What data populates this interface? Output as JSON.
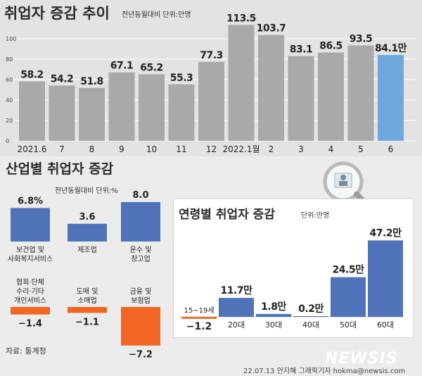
{
  "header": {
    "title": "취업자 증감 추이",
    "note": "전년동월대비 단위:만명"
  },
  "industry_header": {
    "title": "산업별 취업자 증감",
    "note": "전년동월대비 단위:%"
  },
  "age_header": {
    "title": "연령별 취업자 증감",
    "note": "단위:만명"
  },
  "footer": {
    "source": "자료: 통계청",
    "credit": "22.07.13 안지혜 그래픽기자 hokma@newsis.com",
    "logo": "NEWSIS"
  },
  "colors": {
    "gray_bar": "#a9a9a9",
    "highlight_bar": "#6fa8dc",
    "blue_bar": "#4f72b8",
    "orange_bar": "#f26522"
  },
  "icons": [
    "magnifier-icon"
  ],
  "chart_data": [
    {
      "type": "bar",
      "title": "취업자 증감 추이",
      "categories": [
        "2021.6",
        "7",
        "8",
        "9",
        "10",
        "11",
        "12",
        "2022.1월",
        "2",
        "3",
        "4",
        "5",
        "6"
      ],
      "values": [
        58.2,
        54.2,
        51.8,
        67.1,
        65.2,
        55.3,
        77.3,
        113.5,
        103.7,
        83.1,
        86.5,
        93.5,
        84.1
      ],
      "value_labels": [
        "58.2",
        "54.2",
        "51.8",
        "67.1",
        "65.2",
        "55.3",
        "77.3",
        "113.5",
        "103.7",
        "83.1",
        "86.5",
        "93.5",
        "84.1만"
      ],
      "highlight_index": 12,
      "yticks": [
        "0",
        "20",
        "40",
        "60",
        "80",
        "100"
      ],
      "ylim": [
        0,
        120
      ],
      "grid": true
    },
    {
      "type": "bar",
      "title": "산업별 취업자 증감",
      "unit": "%",
      "categories": [
        "보건업 및 사회복지서비스",
        "제조업",
        "운수 및 창고업",
        "협회·단체 수리·기타 개인서비스",
        "도매 및 소매업",
        "금융 및 보험업"
      ],
      "category_lines": [
        [
          "보건업 및",
          "사회복지서비스"
        ],
        [
          "제조업"
        ],
        [
          "운수 및",
          "창고업"
        ],
        [
          "협회·단체",
          "수리·기타",
          "개인서비스"
        ],
        [
          "도매 및",
          "소매업"
        ],
        [
          "금융 및",
          "보험업"
        ]
      ],
      "values": [
        6.8,
        3.6,
        8.0,
        -1.4,
        -1.1,
        -7.2
      ],
      "value_labels": [
        "6.8%",
        "3.6",
        "8.0",
        "−1.4",
        "−1.1",
        "−7.2"
      ]
    },
    {
      "type": "bar",
      "title": "연령별 취업자 증감",
      "unit": "만명",
      "categories": [
        "15~19세",
        "20대",
        "30대",
        "40대",
        "50대",
        "60대"
      ],
      "values": [
        -1.2,
        11.7,
        1.8,
        0.2,
        24.5,
        47.2
      ],
      "value_labels": [
        "−1.2",
        "11.7만",
        "1.8만",
        "0.2만",
        "24.5만",
        "47.2만"
      ]
    }
  ]
}
